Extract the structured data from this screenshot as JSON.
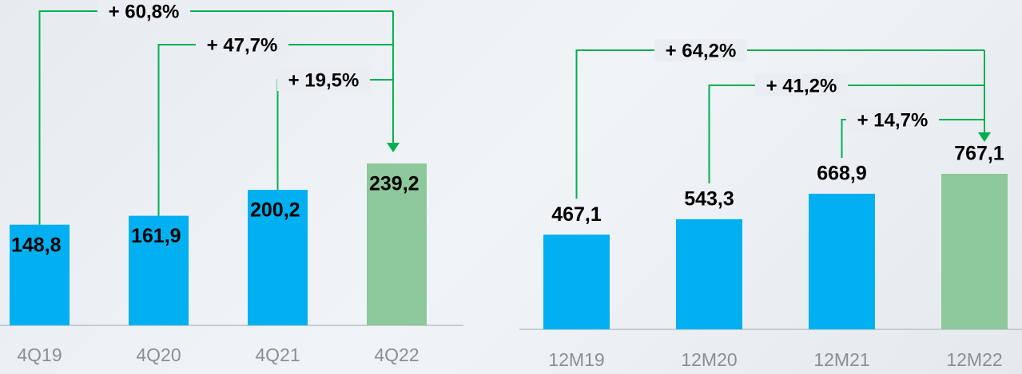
{
  "chart_data": [
    {
      "type": "bar",
      "categories": [
        "4Q19",
        "4Q20",
        "4Q21",
        "4Q22"
      ],
      "values": [
        148.8,
        161.9,
        200.2,
        239.2
      ],
      "value_labels": [
        "148,8",
        "161,9",
        "200,2",
        "239,2"
      ],
      "colors": [
        "#00b0f0",
        "#00b0f0",
        "#00b0f0",
        "#8dc89a"
      ],
      "annotations": [
        "+ 60,8%",
        "+ 47,7%",
        "+ 19,5%"
      ]
    },
    {
      "type": "bar",
      "categories": [
        "12M19",
        "12M20",
        "12M21",
        "12M22"
      ],
      "values": [
        467.1,
        543.3,
        668.9,
        767.1
      ],
      "value_labels": [
        "467,1",
        "543,3",
        "668,9",
        "767,1"
      ],
      "colors": [
        "#00b0f0",
        "#00b0f0",
        "#00b0f0",
        "#8dc89a"
      ],
      "annotations": [
        "+ 64,2%",
        "+ 41,2%",
        "+ 14,7%"
      ]
    }
  ]
}
